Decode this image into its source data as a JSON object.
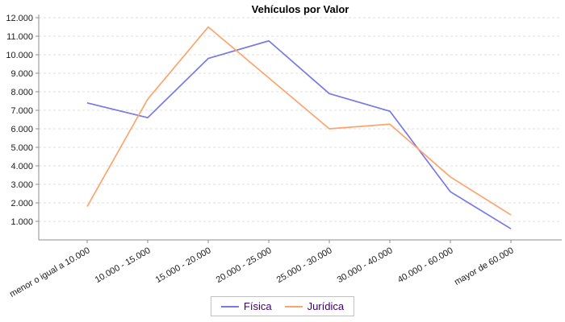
{
  "chart_data": {
    "type": "line",
    "title": "Vehículos por Valor",
    "categories": [
      "menor o igual a 10.000",
      "10.000 - 15.000",
      "15.000 - 20.000",
      "20.000 - 25.000",
      "25.000 - 30.000",
      "30.000 - 40.000",
      "40.000 - 60.000",
      "mayor de 60.000"
    ],
    "series": [
      {
        "name": "Física",
        "color": "#7878E6",
        "values": [
          7400,
          6600,
          9800,
          10750,
          7900,
          6950,
          2600,
          600
        ]
      },
      {
        "name": "Jurídica",
        "color": "#FCA46E",
        "values": [
          1800,
          7600,
          11500,
          8750,
          6000,
          6250,
          3400,
          1350
        ]
      }
    ],
    "xlabel": "",
    "ylabel": "",
    "ylim": [
      0,
      12000
    ],
    "ytick_step": 1000,
    "ytick_labels": [
      "1.000",
      "2.000",
      "3.000",
      "4.000",
      "5.000",
      "6.000",
      "7.000",
      "8.000",
      "9.000",
      "10.000",
      "11.000",
      "12.000"
    ],
    "grid": true,
    "legend_position": "bottom",
    "colors": {
      "grid": "#DCDCDC",
      "axis": "#8C8C8C",
      "tick_text": "#1A1A1A",
      "legend_text": "#3C006E",
      "legend_border": "#C0C0C0",
      "background": "#FFFFFF"
    }
  }
}
